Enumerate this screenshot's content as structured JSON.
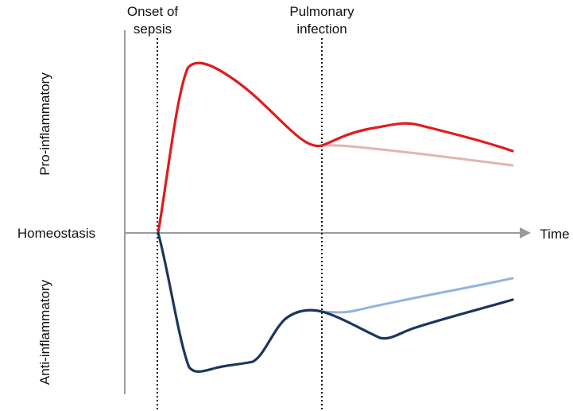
{
  "labels": {
    "onset_line1": "Onset of",
    "onset_line2": "sepsis",
    "infection_line1": "Pulmonary",
    "infection_line2": "infection",
    "homeostasis": "Homeostasis",
    "time": "Time",
    "pro": "Pro-inflammatory",
    "anti": "Anti-inflammatory"
  },
  "colors": {
    "pro_primary": "#e01b1b",
    "pro_faint": "#e3b3b3",
    "anti_primary": "#1b365d",
    "anti_faint": "#93b4e0",
    "axis": "#9a9a9a",
    "marker": "#111111"
  }
}
